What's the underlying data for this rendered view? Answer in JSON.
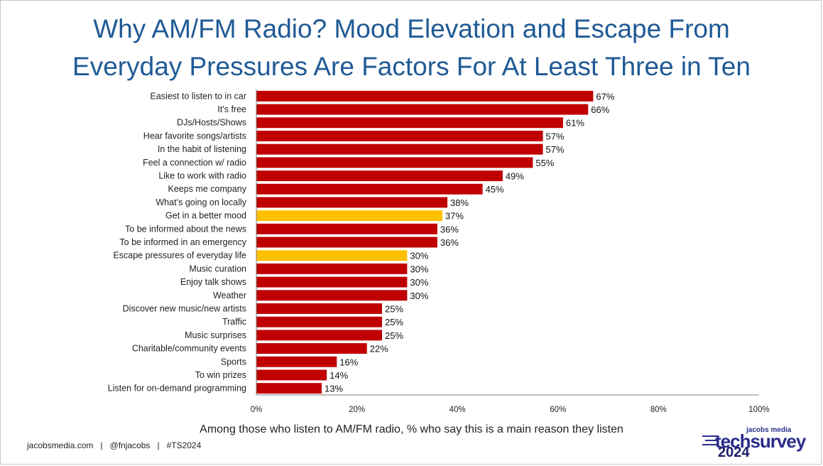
{
  "title_line1": "Why AM/FM Radio? Mood Elevation and Escape From",
  "title_line2": "Everyday Pressures Are Factors For At Least Three in Ten",
  "footer": {
    "site": "jacobsmedia.com",
    "handle": "@fnjacobs",
    "hashtag": "#TS2024",
    "separator": "|"
  },
  "logo": {
    "small": "jacobs media",
    "main": "techsurvey",
    "year": "2024"
  },
  "colors": {
    "bar": "#c00000",
    "highlight": "#ffc000",
    "title": "#1f5a96",
    "logo": "#2b2d8c"
  },
  "chart_data": {
    "type": "bar",
    "orientation": "horizontal",
    "xlabel": "Among those who listen to AM/FM radio, % who say this is a main reason they listen",
    "ylabel": "",
    "xlim": [
      0,
      100
    ],
    "ticks": [
      "0%",
      "20%",
      "40%",
      "60%",
      "80%",
      "100%"
    ],
    "tick_values": [
      0,
      20,
      40,
      60,
      80,
      100
    ],
    "grid": false,
    "categories": [
      "Easiest to listen to in car",
      "It’s free",
      "DJs/Hosts/Shows",
      "Hear favorite songs/artists",
      "In the habit of listening",
      "Feel a connection w/ radio",
      "Like to work with radio",
      "Keeps me company",
      "What’s going on locally",
      "Get in a better mood",
      "To be informed about the news",
      "To be informed in an emergency",
      "Escape pressures of everyday life",
      "Music curation",
      "Enjoy talk shows",
      "Weather",
      "Discover new music/new artists",
      "Traffic",
      "Music surprises",
      "Charitable/community events",
      "Sports",
      "To win prizes",
      "Listen for on-demand programming"
    ],
    "values": [
      67,
      66,
      61,
      57,
      57,
      55,
      49,
      45,
      38,
      37,
      36,
      36,
      30,
      30,
      30,
      30,
      25,
      25,
      25,
      22,
      16,
      14,
      13
    ],
    "value_labels": [
      "67%",
      "66%",
      "61%",
      "57%",
      "57%",
      "55%",
      "49%",
      "45%",
      "38%",
      "37%",
      "36%",
      "36%",
      "30%",
      "30%",
      "30%",
      "30%",
      "25%",
      "25%",
      "25%",
      "22%",
      "16%",
      "14%",
      "13%"
    ],
    "highlighted": [
      "Get in a better mood",
      "Escape pressures of everyday life"
    ]
  }
}
